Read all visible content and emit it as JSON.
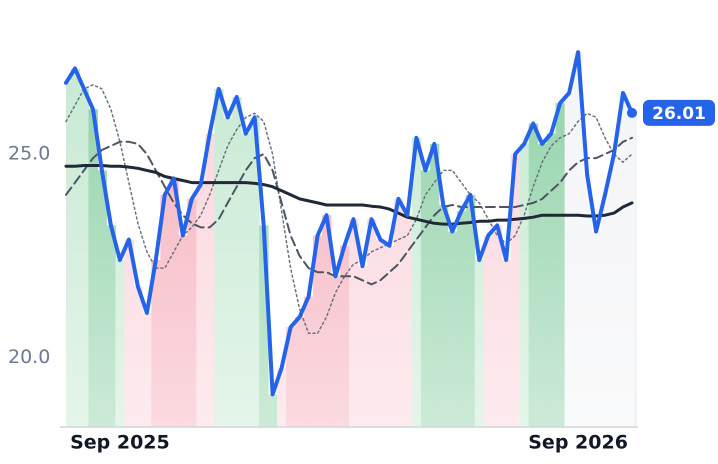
{
  "chart_data": {
    "type": "line",
    "categories": [
      null,
      null,
      null,
      null,
      null,
      null,
      "Sep 2025",
      null,
      null,
      null,
      null,
      null,
      null,
      null,
      null,
      null,
      null,
      null,
      null,
      null,
      null,
      null,
      null,
      null,
      null,
      null,
      null,
      null,
      null,
      null,
      null,
      null,
      null,
      null,
      null,
      null,
      null,
      null,
      null,
      null,
      null,
      null,
      null,
      null,
      null,
      null,
      null,
      null,
      null,
      null,
      null,
      null,
      null,
      null,
      null,
      null,
      null,
      "Sep 2026",
      null,
      null,
      null,
      null,
      null,
      null
    ],
    "series": [
      {
        "color": "#2563eb",
        "style": "solid",
        "width": 4,
        "values": [
          26.75,
          27.1,
          26.6,
          26.1,
          24.6,
          23.25,
          22.4,
          22.9,
          21.75,
          21.1,
          22.4,
          24.0,
          24.4,
          23.0,
          23.9,
          24.25,
          25.5,
          26.6,
          25.9,
          26.4,
          25.5,
          25.9,
          23.25,
          19.1,
          19.75,
          20.75,
          21.0,
          21.5,
          23.0,
          23.5,
          22.0,
          22.75,
          23.4,
          22.25,
          23.4,
          22.9,
          22.75,
          23.9,
          23.5,
          25.4,
          24.6,
          25.25,
          23.75,
          23.1,
          23.6,
          24.0,
          22.4,
          23.0,
          23.25,
          22.4,
          25.0,
          25.25,
          25.75,
          25.25,
          25.5,
          26.25,
          26.5,
          27.5,
          24.5,
          23.1,
          24.0,
          25.0,
          26.5,
          26.01
        ]
      },
      {
        "color": "#6b7280",
        "style": "dotted",
        "width": 1.5,
        "values": [
          25.8,
          26.2,
          26.6,
          26.7,
          26.6,
          26.1,
          25.3,
          24.3,
          23.3,
          22.6,
          22.2,
          22.2,
          22.6,
          23.0,
          23.2,
          23.5,
          24.0,
          24.6,
          25.2,
          25.6,
          25.9,
          26.0,
          25.8,
          25.0,
          23.6,
          22.2,
          21.2,
          20.6,
          20.6,
          21.0,
          21.6,
          22.0,
          22.3,
          22.4,
          22.6,
          22.7,
          22.8,
          22.9,
          23.0,
          23.4,
          24.0,
          24.3,
          24.6,
          24.6,
          24.3,
          24.0,
          23.8,
          23.4,
          23.0,
          22.8,
          23.0,
          23.5,
          24.2,
          24.8,
          25.2,
          25.4,
          25.5,
          25.8,
          26.0,
          25.9,
          25.4,
          25.0,
          24.8,
          25.0
        ]
      },
      {
        "color": "#4b5563",
        "style": "dashed",
        "width": 2,
        "values": [
          24.0,
          24.3,
          24.6,
          24.9,
          25.1,
          25.2,
          25.3,
          25.3,
          25.25,
          25.0,
          24.6,
          24.2,
          23.8,
          23.5,
          23.3,
          23.2,
          23.2,
          23.4,
          23.8,
          24.2,
          24.6,
          24.9,
          25.0,
          24.6,
          23.8,
          23.0,
          22.5,
          22.2,
          22.1,
          22.1,
          22.0,
          22.0,
          22.0,
          21.9,
          21.8,
          21.9,
          22.1,
          22.3,
          22.6,
          22.9,
          23.2,
          23.5,
          23.7,
          23.75,
          23.7,
          23.7,
          23.7,
          23.7,
          23.7,
          23.7,
          23.7,
          23.75,
          23.8,
          23.9,
          24.1,
          24.3,
          24.6,
          24.8,
          24.9,
          24.9,
          25.0,
          25.1,
          25.3,
          25.4
        ]
      },
      {
        "color": "#1f2937",
        "style": "solid",
        "width": 3,
        "values": [
          24.7,
          24.7,
          24.72,
          24.72,
          24.72,
          24.7,
          24.7,
          24.68,
          24.65,
          24.6,
          24.55,
          24.45,
          24.4,
          24.35,
          24.3,
          24.3,
          24.3,
          24.3,
          24.3,
          24.3,
          24.3,
          24.28,
          24.25,
          24.2,
          24.1,
          24.0,
          23.9,
          23.85,
          23.8,
          23.75,
          23.75,
          23.75,
          23.75,
          23.75,
          23.72,
          23.7,
          23.65,
          23.55,
          23.45,
          23.4,
          23.35,
          23.3,
          23.28,
          23.28,
          23.3,
          23.32,
          23.35,
          23.35,
          23.38,
          23.38,
          23.4,
          23.42,
          23.45,
          23.5,
          23.5,
          23.5,
          23.5,
          23.5,
          23.48,
          23.48,
          23.5,
          23.55,
          23.7,
          23.8
        ]
      }
    ],
    "band_colors": [
      "#c5e9d1",
      "#c5e9d1",
      "#c5e9d1",
      "#8ed1a6",
      "#8ed1a6",
      "#8ed1a6",
      "#c5e9d1",
      "#fbd3db",
      "#fbd3db",
      "#fbd3db",
      "#f6adbb",
      "#f6adbb",
      "#f6adbb",
      "#f6adbb",
      "#f6adbb",
      "#fbd3db",
      "#fbd3db",
      "#c5e9d1",
      "#c5e9d1",
      "#c5e9d1",
      "#c5e9d1",
      "#c5e9d1",
      "#8ed1a6",
      "#8ed1a6",
      "#fbd3db",
      "#f6adbb",
      "#f6adbb",
      "#f6adbb",
      "#f6adbb",
      "#f6adbb",
      "#f6adbb",
      "#f6adbb",
      "#fbd3db",
      "#fbd3db",
      "#fbd3db",
      "#fbd3db",
      "#fbd3db",
      "#fbd3db",
      "#fbd3db",
      "#c5e9d1",
      "#8ed1a6",
      "#8ed1a6",
      "#8ed1a6",
      "#8ed1a6",
      "#8ed1a6",
      "#8ed1a6",
      "#c5e9d1",
      "#fbd3db",
      "#fbd3db",
      "#fbd3db",
      "#fbd3db",
      "#c5e9d1",
      "#8ed1a6",
      "#8ed1a6",
      "#8ed1a6",
      "#8ed1a6",
      "#f3f4f6",
      "#f3f4f6",
      "#f3f4f6",
      "#f3f4f6",
      "#f3f4f6",
      "#f3f4f6",
      "#f3f4f6",
      "#f3f4f6"
    ],
    "ylim": [
      18.3,
      27.8
    ],
    "yticks": [
      {
        "value": 20,
        "label": "20.0"
      },
      {
        "value": 25,
        "label": "25.0"
      }
    ]
  }
}
